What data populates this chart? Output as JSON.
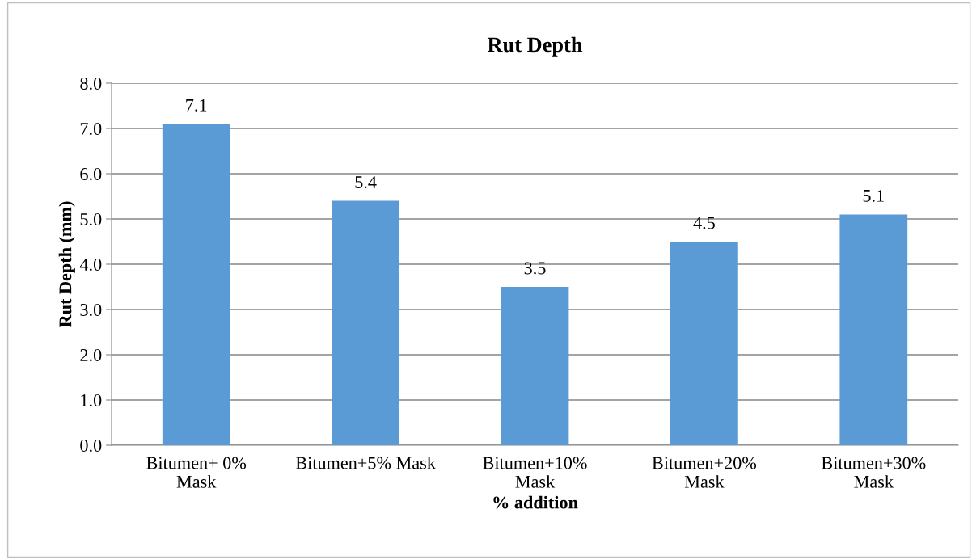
{
  "chart_data": {
    "type": "bar",
    "title": "Rut Depth",
    "xlabel": "% addition",
    "ylabel": "Rut Depth (mm)",
    "categories": [
      "Bitumen+ 0%\nMask",
      "Bitumen+5% Mask",
      "Bitumen+10%\nMask",
      "Bitumen+20%\nMask",
      "Bitumen+30%\nMask"
    ],
    "values": [
      7.1,
      5.4,
      3.5,
      4.5,
      5.1
    ],
    "color": "#5b9bd5",
    "ylim": [
      0,
      8
    ],
    "yticks": [
      {
        "value": 0,
        "label": "0.0"
      },
      {
        "value": 1,
        "label": "1.0"
      },
      {
        "value": 2,
        "label": "2.0"
      },
      {
        "value": 3,
        "label": "3.0"
      },
      {
        "value": 4,
        "label": "4.0"
      },
      {
        "value": 5,
        "label": "5.0"
      },
      {
        "value": 6,
        "label": "6.0"
      },
      {
        "value": 7,
        "label": "7.0"
      },
      {
        "value": 8,
        "label": "8.0"
      }
    ],
    "grid": "y",
    "data_labels": true
  }
}
